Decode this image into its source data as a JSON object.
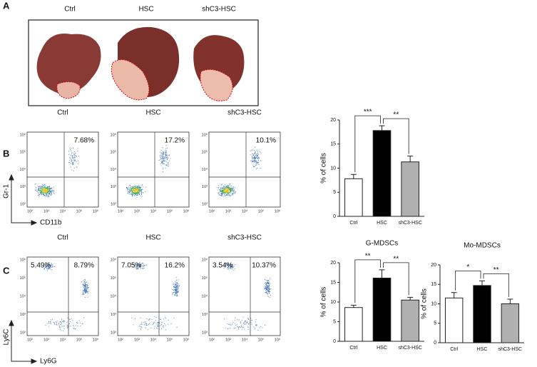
{
  "panel_a": {
    "label": "A",
    "groups": [
      "Ctrl",
      "HSC",
      "shC3-HSC"
    ]
  },
  "panel_b": {
    "label": "B",
    "y_axis": "Gr-1",
    "x_axis": "CD11b",
    "plots": [
      {
        "title": "Ctrl",
        "gates": [
          "7.68%"
        ]
      },
      {
        "title": "HSC",
        "gates": [
          "17.2%"
        ]
      },
      {
        "title": "shC3-HSC",
        "gates": [
          "10.1%"
        ]
      }
    ]
  },
  "panel_c": {
    "label": "C",
    "y_axis": "Ly6C",
    "x_axis": "Ly6G",
    "plots": [
      {
        "title": "Ctrl",
        "gates": [
          "5.49%",
          "8.79%"
        ]
      },
      {
        "title": "HSC",
        "gates": [
          "7.05%",
          "16.2%"
        ]
      },
      {
        "title": "shC3-HSC",
        "gates": [
          "3.54%",
          "10.37%"
        ]
      }
    ]
  },
  "flow_ticks": [
    "10²",
    "10³",
    "10⁴",
    "10⁵",
    "10⁶"
  ],
  "chart_data": [
    {
      "type": "bar",
      "ylabel": "% of cells",
      "categories": [
        "Ctrl",
        "HSC",
        "shC3-HSC"
      ],
      "values": [
        7.8,
        17.8,
        11.3
      ],
      "errors": [
        0.9,
        1.0,
        1.2
      ],
      "colors": [
        "#ffffff",
        "#000000",
        "#b0b0b0"
      ],
      "ylim": [
        0,
        20
      ],
      "yticks": [
        0,
        5,
        10,
        15,
        20
      ],
      "annotations": [
        {
          "text": "***",
          "between": [
            "Ctrl",
            "HSC"
          ]
        },
        {
          "text": "**",
          "between": [
            "HSC",
            "shC3-HSC"
          ]
        }
      ]
    },
    {
      "type": "bar",
      "title": "G-MDSCs",
      "ylabel": "% of cells",
      "categories": [
        "Ctrl",
        "HSC",
        "shC3-HSC"
      ],
      "values": [
        8.6,
        16.1,
        10.5
      ],
      "errors": [
        0.6,
        2.1,
        0.7
      ],
      "colors": [
        "#ffffff",
        "#000000",
        "#b0b0b0"
      ],
      "ylim": [
        0,
        20
      ],
      "yticks": [
        0,
        5,
        10,
        15,
        20
      ],
      "annotations": [
        {
          "text": "**",
          "between": [
            "Ctrl",
            "HSC"
          ]
        },
        {
          "text": "**",
          "between": [
            "HSC",
            "shC3-HSC"
          ]
        }
      ]
    },
    {
      "type": "bar",
      "title": "Mo-MDSCs",
      "ylabel": "% of cells",
      "categories": [
        "Ctrl",
        "HSC",
        "shC3-HSC"
      ],
      "values": [
        11.5,
        14.7,
        10.0
      ],
      "errors": [
        1.4,
        1.2,
        1.2
      ],
      "colors": [
        "#ffffff",
        "#000000",
        "#b0b0b0"
      ],
      "ylim": [
        0,
        20
      ],
      "yticks": [
        0,
        5,
        10,
        15,
        20
      ],
      "annotations": [
        {
          "text": "*",
          "between": [
            "Ctrl",
            "HSC"
          ]
        },
        {
          "text": "**",
          "between": [
            "HSC",
            "shC3-HSC"
          ]
        }
      ]
    }
  ]
}
